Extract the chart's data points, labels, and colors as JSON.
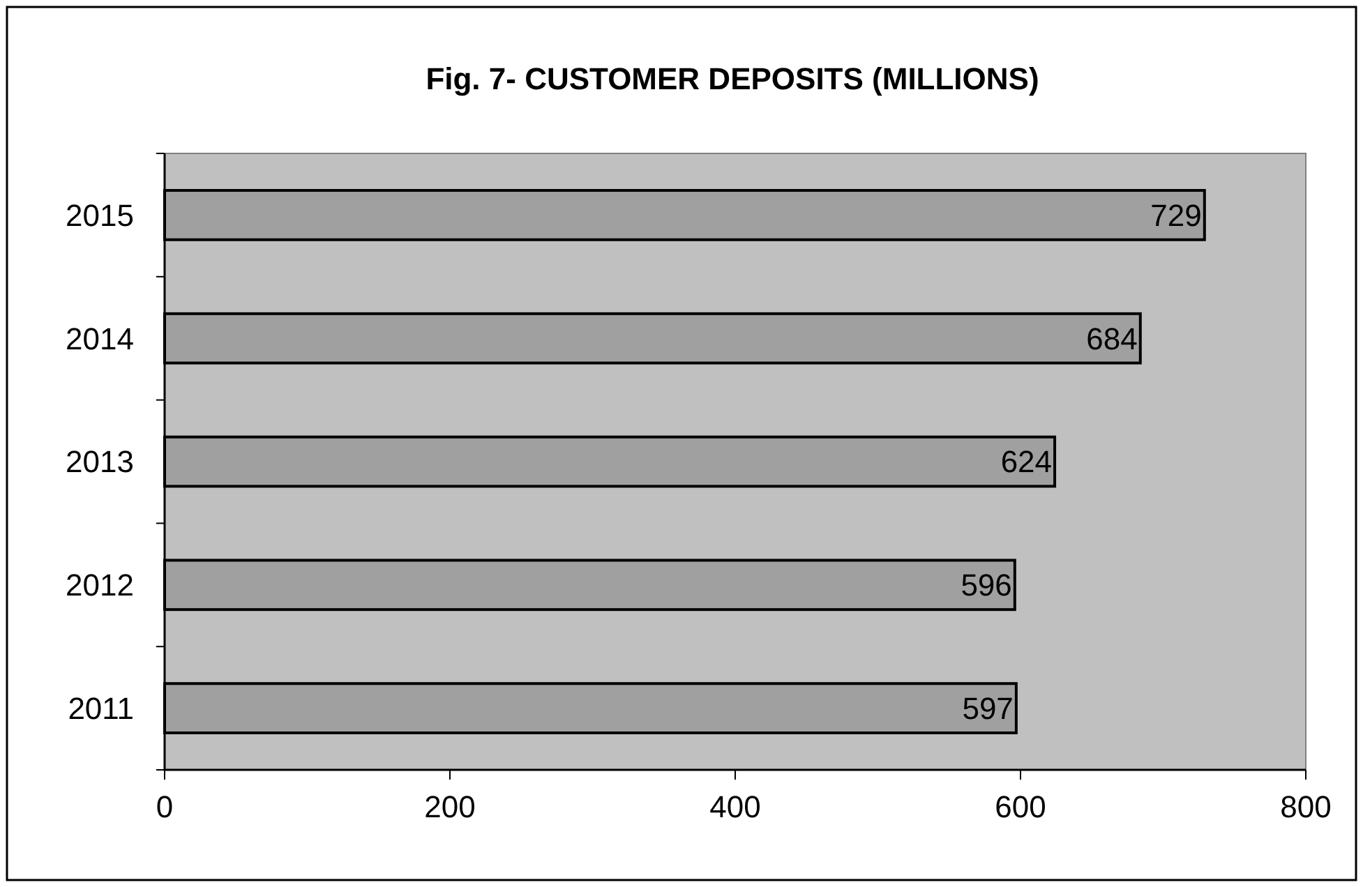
{
  "chart_data": {
    "type": "bar",
    "orientation": "horizontal",
    "title": "Fig. 7- CUSTOMER DEPOSITS (MILLIONS)",
    "categories": [
      "2015",
      "2014",
      "2013",
      "2012",
      "2011"
    ],
    "values": [
      729,
      684,
      624,
      596,
      597
    ],
    "color": "#a0a0a0",
    "xlim": [
      0,
      800
    ],
    "xticks": [
      0,
      200,
      400,
      600,
      800
    ],
    "data_labels": true
  }
}
